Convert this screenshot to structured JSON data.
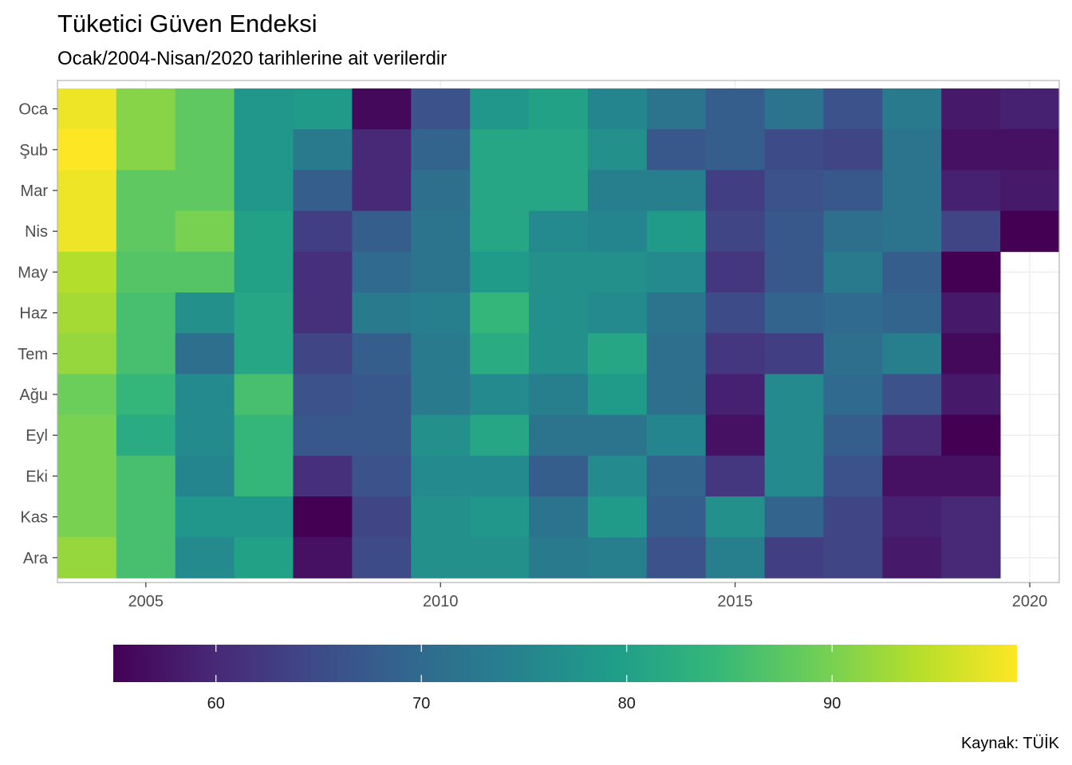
{
  "title": "Tüketici Güven Endeksi",
  "subtitle": "Ocak/2004-Nisan/2020 tarihlerine ait verilerdir",
  "caption": "Kaynak: TÜİK",
  "chart_data": {
    "type": "heatmap",
    "title": "Tüketici Güven Endeksi",
    "subtitle": "Ocak/2004-Nisan/2020 tarihlerine ait verilerdir",
    "x": [
      2004,
      2005,
      2006,
      2007,
      2008,
      2009,
      2010,
      2011,
      2012,
      2013,
      2014,
      2015,
      2016,
      2017,
      2018,
      2019,
      2020
    ],
    "x_ticks": [
      2005,
      2010,
      2015,
      2020
    ],
    "xlim": [
      2003.5,
      2020.5
    ],
    "months": [
      "Oca",
      "Şub",
      "Mar",
      "Nis",
      "May",
      "Haz",
      "Tem",
      "Ağu",
      "Eyl",
      "Eki",
      "Kas",
      "Ara"
    ],
    "values": [
      [
        98,
        91,
        88,
        78,
        79,
        56,
        66,
        78,
        80,
        75,
        72,
        68,
        72,
        66,
        73,
        58,
        59
      ],
      [
        99,
        91,
        88,
        78,
        73,
        60,
        69,
        81,
        81,
        77,
        67,
        68,
        65,
        64,
        72,
        57,
        57
      ],
      [
        98,
        88,
        88,
        78,
        68,
        60,
        71,
        81,
        81,
        74,
        74,
        63,
        66,
        67,
        72,
        59,
        58
      ],
      [
        98,
        88,
        90,
        80,
        63,
        68,
        72,
        81,
        76,
        75,
        79,
        64,
        67,
        71,
        72,
        64,
        55
      ],
      [
        94,
        87,
        87,
        80,
        61,
        70,
        72,
        79,
        77,
        77,
        76,
        62,
        67,
        73,
        68,
        55,
        null
      ],
      [
        93,
        86,
        77,
        81,
        61,
        73,
        74,
        84,
        77,
        76,
        72,
        65,
        69,
        70,
        69,
        58,
        null
      ],
      [
        92,
        86,
        71,
        81,
        64,
        68,
        73,
        82,
        77,
        81,
        71,
        62,
        63,
        71,
        74,
        56,
        null
      ],
      [
        89,
        84,
        76,
        86,
        66,
        67,
        73,
        76,
        74,
        79,
        71,
        59,
        76,
        70,
        66,
        58,
        null
      ],
      [
        90,
        82,
        76,
        84,
        67,
        67,
        77,
        81,
        72,
        72,
        75,
        57,
        76,
        68,
        60,
        55,
        null
      ],
      [
        90,
        86,
        75,
        84,
        61,
        66,
        76,
        76,
        68,
        76,
        69,
        62,
        76,
        66,
        57,
        57,
        null
      ],
      [
        90,
        86,
        78,
        78,
        55,
        64,
        77,
        78,
        72,
        79,
        68,
        77,
        69,
        64,
        59,
        60,
        null
      ],
      [
        92,
        86,
        76,
        80,
        57,
        65,
        77,
        77,
        73,
        74,
        66,
        74,
        63,
        64,
        58,
        60,
        null
      ]
    ],
    "color_scale": "viridis",
    "colorbar_range": [
      55,
      99
    ],
    "colorbar_ticks": [
      60,
      70,
      80,
      90
    ],
    "colors": [
      "#440154",
      "#482878",
      "#3e4a89",
      "#31688e",
      "#26828e",
      "#1f9e89",
      "#35b779",
      "#6ece58",
      "#b5de2b",
      "#fde725"
    ],
    "grid": true,
    "legend": "bottom"
  }
}
